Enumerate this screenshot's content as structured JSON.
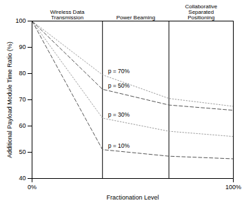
{
  "chart_data": {
    "type": "line",
    "x_label": "Fractionation Level",
    "y_label": "Additional Payload Module Time Ratio (%)",
    "x": [
      0,
      35,
      68,
      100
    ],
    "series": [
      {
        "name": "p = 70%",
        "color": "#9a9a9a",
        "line_style": "dotted",
        "values": [
          100,
          79.5,
          70.5,
          67.5
        ]
      },
      {
        "name": "p = 50%",
        "color": "#555555",
        "line_style": "dashed",
        "values": [
          100,
          74,
          68,
          66
        ]
      },
      {
        "name": "p = 30%",
        "color": "#9a9a9a",
        "line_style": "dotted",
        "values": [
          100,
          63,
          58,
          56
        ]
      },
      {
        "name": "p = 10%",
        "color": "#555555",
        "line_style": "dashed",
        "values": [
          100,
          51,
          48.5,
          47.5
        ]
      }
    ],
    "regions": [
      {
        "label": "Wireless Data Transmission",
        "start": 0,
        "end": 35
      },
      {
        "label": "Power Beaming",
        "start": 35,
        "end": 68
      },
      {
        "label": "Collaborative Separated Positioning",
        "start": 68,
        "end": 100
      }
    ],
    "xlim": [
      0,
      100
    ],
    "xticks": [
      {
        "value": 0,
        "label": "0%"
      },
      {
        "value": 100,
        "label": "100%"
      }
    ],
    "ylim": [
      40,
      100
    ],
    "yticks": [
      40,
      50,
      60,
      70,
      80,
      90,
      100
    ],
    "grid": false
  }
}
